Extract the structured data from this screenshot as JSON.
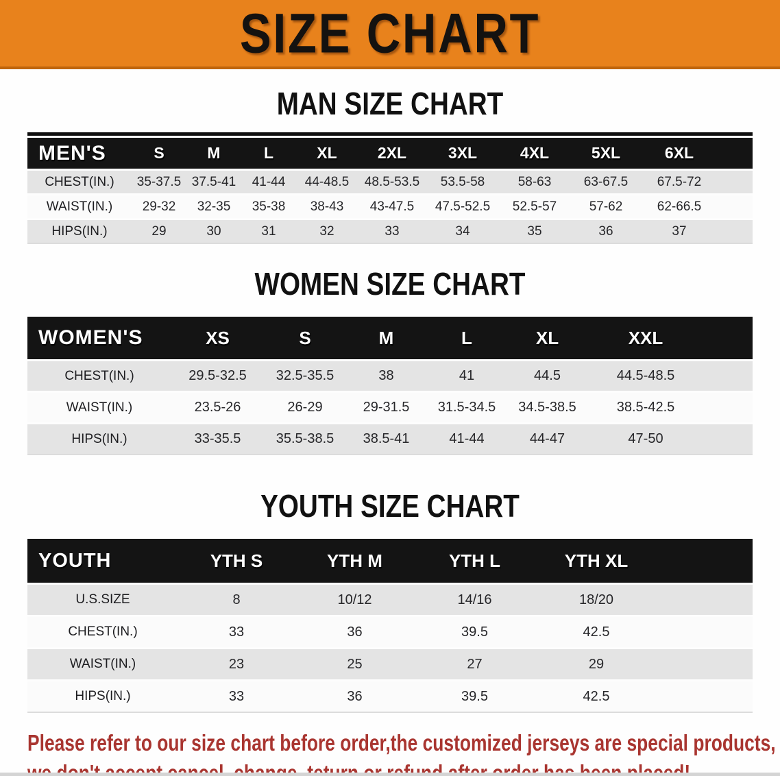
{
  "banner": {
    "title": "SIZE CHART",
    "bg_color": "#e8821c",
    "text_color": "#141210"
  },
  "tables": [
    {
      "heading": "MAN SIZE CHART",
      "label": "MEN'S",
      "columns": [
        "S",
        "M",
        "L",
        "XL",
        "2XL",
        "3XL",
        "4XL",
        "5XL",
        "6XL"
      ],
      "rows": [
        {
          "label": "CHEST(IN.)",
          "values": [
            "35-37.5",
            "37.5-41",
            "41-44",
            "44-48.5",
            "48.5-53.5",
            "53.5-58",
            "58-63",
            "63-67.5",
            "67.5-72"
          ]
        },
        {
          "label": "WAIST(IN.)",
          "values": [
            "29-32",
            "32-35",
            "35-38",
            "38-43",
            "43-47.5",
            "47.5-52.5",
            "52.5-57",
            "57-62",
            "62-66.5"
          ]
        },
        {
          "label": "HIPS(IN.)",
          "values": [
            "29",
            "30",
            "31",
            "32",
            "33",
            "34",
            "35",
            "36",
            "37"
          ]
        }
      ]
    },
    {
      "heading": "WOMEN SIZE CHART",
      "label": "WOMEN'S",
      "columns": [
        "XS",
        "S",
        "M",
        "L",
        "XL",
        "XXL"
      ],
      "rows": [
        {
          "label": "CHEST(IN.)",
          "values": [
            "29.5-32.5",
            "32.5-35.5",
            "38",
            "41",
            "44.5",
            "44.5-48.5"
          ]
        },
        {
          "label": "WAIST(IN.)",
          "values": [
            "23.5-26",
            "26-29",
            "29-31.5",
            "31.5-34.5",
            "34.5-38.5",
            "38.5-42.5"
          ]
        },
        {
          "label": "HIPS(IN.)",
          "values": [
            "33-35.5",
            "35.5-38.5",
            "38.5-41",
            "41-44",
            "44-47",
            "47-50"
          ]
        }
      ]
    },
    {
      "heading": "YOUTH SIZE CHART",
      "label": "YOUTH",
      "columns": [
        "YTH S",
        "YTH M",
        "YTH L",
        "YTH XL"
      ],
      "rows": [
        {
          "label": "U.S.SIZE",
          "values": [
            "8",
            "10/12",
            "14/16",
            "18/20"
          ]
        },
        {
          "label": "CHEST(IN.)",
          "values": [
            "33",
            "36",
            "39.5",
            "42.5"
          ]
        },
        {
          "label": "WAIST(IN.)",
          "values": [
            "23",
            "25",
            "27",
            "29"
          ]
        },
        {
          "label": "HIPS(IN.)",
          "values": [
            "33",
            "36",
            "39.5",
            "42.5"
          ]
        }
      ]
    }
  ],
  "disclaimer": {
    "line1": "Please refer to our size chart before order,the customized jerseys are special products,",
    "line2": "we don't accept cancel, change, teturn or refund after order has been placed!",
    "color": "#a93530"
  },
  "table_colors": {
    "header_bg": "#141414",
    "header_text": "#ffffff",
    "row_shade": "#e4e4e4",
    "row_plain": "#fbfbfb"
  }
}
